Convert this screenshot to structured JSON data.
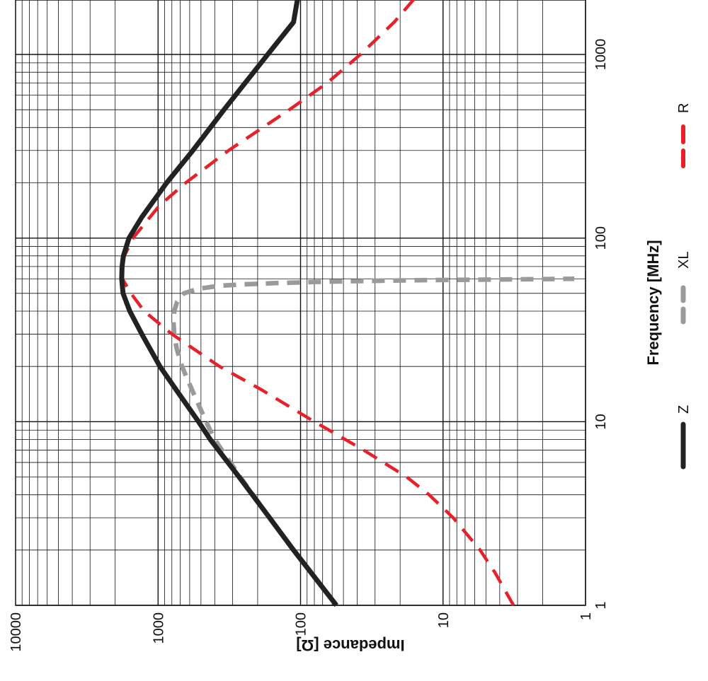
{
  "chart_data": {
    "type": "line",
    "orientation": "rotated 90 degrees clockwise",
    "xlabel": "Frequency [MHz]",
    "ylabel": "Impedance [Ω]",
    "xscale": "log",
    "yscale": "log",
    "xlim": [
      1,
      2000
    ],
    "ylim": [
      1,
      10000
    ],
    "grid": true,
    "legend_position": "bottom (rotated)",
    "x_ticks": [
      {
        "value": 1,
        "label": "1"
      },
      {
        "value": 10,
        "label": "10"
      },
      {
        "value": 100,
        "label": "100"
      },
      {
        "value": 1000,
        "label": "1000"
      }
    ],
    "y_ticks": [
      {
        "value": 1,
        "label": "1"
      },
      {
        "value": 10,
        "label": "10"
      },
      {
        "value": 100,
        "label": "100"
      },
      {
        "value": 1000,
        "label": "1000"
      },
      {
        "value": 10000,
        "label": "10000"
      }
    ],
    "series": [
      {
        "name": "Z",
        "color": "#222222",
        "style": "solid",
        "x": [
          1,
          2,
          3,
          5,
          8,
          10,
          15,
          20,
          30,
          40,
          50,
          60,
          70,
          80,
          100,
          130,
          200,
          300,
          500,
          1000,
          1500,
          2000
        ],
        "y": [
          56,
          112,
          165,
          270,
          430,
          520,
          750,
          970,
          1300,
          1580,
          1760,
          1800,
          1790,
          1750,
          1600,
          1300,
          870,
          570,
          345,
          170,
          112,
          105
        ]
      },
      {
        "name": "XL",
        "color": "#9a9a9a",
        "style": "dashed",
        "x": [
          1,
          2,
          3,
          5,
          8,
          10,
          15,
          20,
          25,
          30,
          35,
          40,
          45,
          50,
          53,
          55,
          56,
          57,
          58,
          59,
          60
        ],
        "y": [
          56,
          112,
          165,
          265,
          400,
          460,
          580,
          680,
          740,
          770,
          780,
          770,
          735,
          660,
          520,
          370,
          250,
          140,
          60,
          15,
          1.2
        ]
      },
      {
        "name": "R",
        "color": "#e8202a",
        "style": "dashed",
        "x": [
          1,
          1.5,
          2,
          3,
          4,
          5,
          7,
          10,
          15,
          20,
          30,
          40,
          50,
          60,
          70,
          80,
          100,
          150,
          200,
          300,
          500,
          700,
          1000,
          1500,
          2000
        ],
        "y": [
          3.2,
          4.3,
          5.5,
          8.5,
          12.5,
          18,
          36,
          80,
          190,
          370,
          800,
          1250,
          1550,
          1780,
          1800,
          1720,
          1500,
          980,
          640,
          320,
          120,
          65,
          38,
          22,
          16
        ]
      }
    ]
  }
}
